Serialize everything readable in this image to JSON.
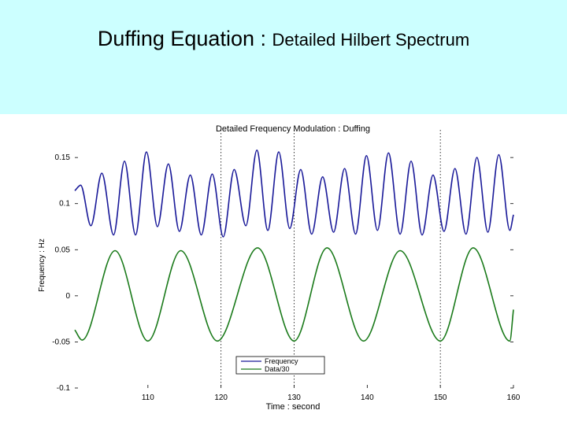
{
  "slide": {
    "title_main": "Duffing Equation : ",
    "title_sub": "Detailed Hilbert Spectrum",
    "header_color": "#ccffff"
  },
  "chart_data": {
    "type": "line",
    "title": "Detailed Frequency Modulation : Duffing",
    "xlabel": "Time : second",
    "ylabel": "Frequency : Hz",
    "xlim": [
      100,
      160
    ],
    "ylim": [
      -0.1,
      0.18
    ],
    "xticks": [
      110,
      120,
      130,
      140,
      150,
      160
    ],
    "yticks": [
      -0.1,
      -0.05,
      0,
      0.05,
      0.1,
      0.15
    ],
    "ytick_labels": [
      "-0.1",
      "-0.05",
      "0",
      "0.05",
      "0.1",
      "0.15"
    ],
    "vertical_markers": [
      120,
      130,
      150
    ],
    "grid": false,
    "legend_position": "bottom-center",
    "series": [
      {
        "name": "Frequency",
        "color": "#1a1a99",
        "x": [
          100,
          100.8,
          102.2,
          103.7,
          105.3,
          106.8,
          108.3,
          109.8,
          111.3,
          112.8,
          114.3,
          115.8,
          117.3,
          118.8,
          120.3,
          121.8,
          123.4,
          124.9,
          126.4,
          127.9,
          129.4,
          130.9,
          132.4,
          133.9,
          135.4,
          136.9,
          138.4,
          139.9,
          141.4,
          142.9,
          144.5,
          146.0,
          147.5,
          149.0,
          150.5,
          152.0,
          153.5,
          155.0,
          156.5,
          158.0,
          159.5,
          160
        ],
        "y": [
          0.114,
          0.12,
          0.076,
          0.133,
          0.066,
          0.146,
          0.066,
          0.156,
          0.075,
          0.143,
          0.07,
          0.131,
          0.066,
          0.132,
          0.064,
          0.137,
          0.076,
          0.158,
          0.071,
          0.156,
          0.073,
          0.137,
          0.067,
          0.129,
          0.069,
          0.138,
          0.067,
          0.152,
          0.071,
          0.155,
          0.067,
          0.146,
          0.066,
          0.131,
          0.07,
          0.138,
          0.067,
          0.15,
          0.069,
          0.153,
          0.071,
          0.088
        ]
      },
      {
        "name": "Data/30",
        "color": "#1a7a1a",
        "x": [
          100,
          101,
          105.5,
          110,
          114.5,
          119.5,
          125,
          130,
          134.5,
          139.5,
          144.5,
          150,
          154.5,
          159.5,
          160
        ],
        "y": [
          -0.037,
          -0.048,
          0.049,
          -0.049,
          0.049,
          -0.049,
          0.052,
          -0.049,
          0.052,
          -0.049,
          0.049,
          -0.049,
          0.052,
          -0.049,
          -0.015
        ]
      }
    ]
  }
}
